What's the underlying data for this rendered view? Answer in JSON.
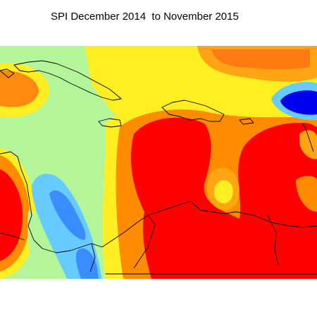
{
  "title": "SPI December 2014  to November 2015"
}
